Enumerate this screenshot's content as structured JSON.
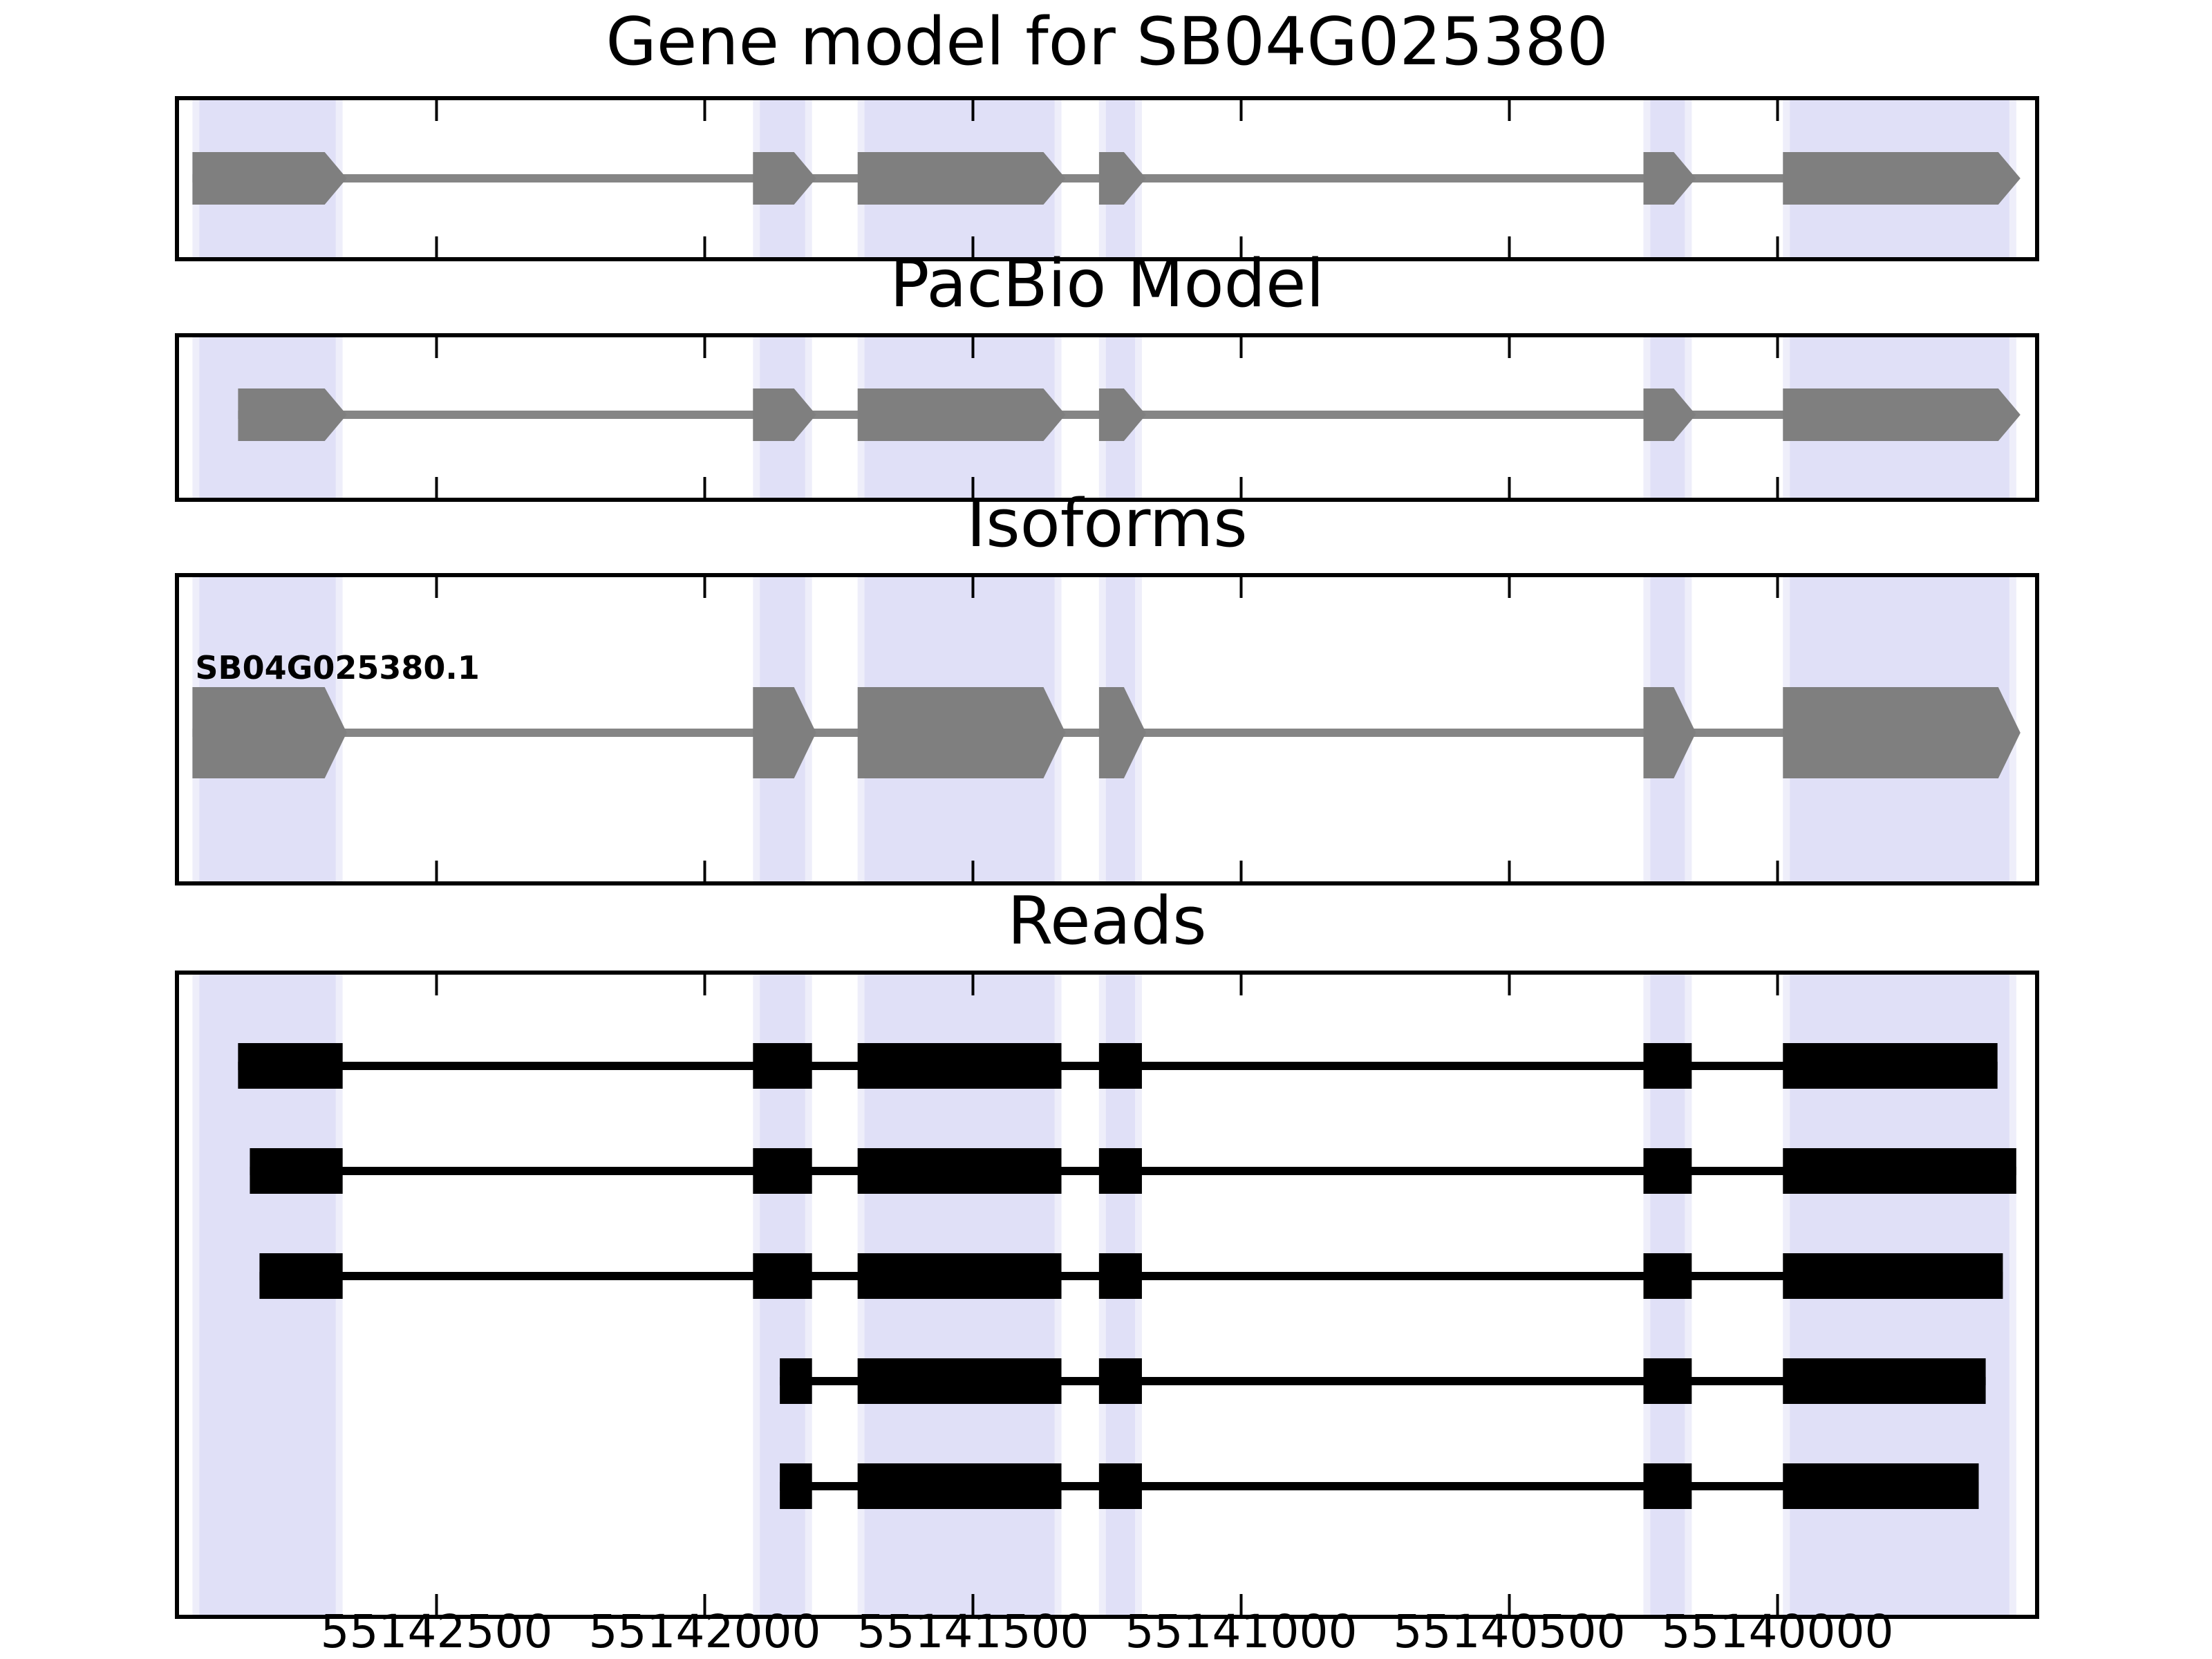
{
  "titles": {
    "main": "Gene model for SB04G025380",
    "pacbio": "PacBio Model",
    "isoforms": "Isoforms",
    "reads": "Reads"
  },
  "isoform_label": "SB04G025380.1",
  "x_tick_labels": [
    "55142500",
    "55142000",
    "55141500",
    "55141000",
    "55140500",
    "55140000"
  ],
  "colors": {
    "exon_gray": "#7F7F7F",
    "intron_gray": "#858585",
    "read_black": "#000000",
    "highlight_band_core": "#E0E0F7",
    "highlight_band_edge": "#EEEEFA",
    "axis_black": "#000000",
    "background": "#FFFFFF"
  },
  "chart_data": {
    "type": "other",
    "subtype": "gene-model-track-plot",
    "title": "Gene model for SB04G025380",
    "track_titles": [
      "Gene model for SB04G025380",
      "PacBio Model",
      "Isoforms",
      "Reads"
    ],
    "x_axis": {
      "unit": "genomic coordinate (bp)",
      "direction": "coordinates decrease left to right (reverse strand view)",
      "range_left_edge": 55142980,
      "range_right_edge": 55139520,
      "ticks": [
        55142500,
        55142000,
        55141500,
        55141000,
        55140500,
        55140000
      ],
      "grid": false
    },
    "highlighted_exon_regions": [
      [
        55142955,
        55142675
      ],
      [
        55141910,
        55141800
      ],
      [
        55141715,
        55141335
      ],
      [
        55141265,
        55141185
      ],
      [
        55140250,
        55140160
      ],
      [
        55139990,
        55139555
      ]
    ],
    "tracks": [
      {
        "name": "Gene model for SB04G025380",
        "style": "gray exons with right-pointing arrow tips joined by intron line",
        "exons": [
          [
            55142955,
            55142675
          ],
          [
            55141910,
            55141800
          ],
          [
            55141715,
            55141335
          ],
          [
            55141265,
            55141185
          ],
          [
            55140250,
            55140160
          ],
          [
            55139990,
            55139555
          ]
        ]
      },
      {
        "name": "PacBio Model",
        "style": "gray exons with right-pointing arrow tips joined by intron line",
        "exons": [
          [
            55142870,
            55142675
          ],
          [
            55141910,
            55141800
          ],
          [
            55141715,
            55141335
          ],
          [
            55141265,
            55141185
          ],
          [
            55140250,
            55140160
          ],
          [
            55139990,
            55139555
          ]
        ]
      },
      {
        "name": "Isoforms",
        "isoforms": [
          {
            "id": "SB04G025380.1",
            "exons": [
              [
                55142955,
                55142675
              ],
              [
                55141910,
                55141800
              ],
              [
                55141715,
                55141335
              ],
              [
                55141265,
                55141185
              ],
              [
                55140250,
                55140160
              ],
              [
                55139990,
                55139555
              ]
            ]
          }
        ]
      },
      {
        "name": "Reads",
        "style": "black rectangular blocks joined by thin black lines",
        "reads": [
          {
            "blocks": [
              [
                55142870,
                55142675
              ],
              [
                55141910,
                55141800
              ],
              [
                55141715,
                55141335
              ],
              [
                55141265,
                55141185
              ],
              [
                55140250,
                55140160
              ],
              [
                55139990,
                55139590
              ]
            ]
          },
          {
            "blocks": [
              [
                55142848,
                55142675
              ],
              [
                55141910,
                55141800
              ],
              [
                55141715,
                55141335
              ],
              [
                55141265,
                55141185
              ],
              [
                55140250,
                55140160
              ],
              [
                55139990,
                55139555
              ]
            ]
          },
          {
            "blocks": [
              [
                55142830,
                55142675
              ],
              [
                55141910,
                55141800
              ],
              [
                55141715,
                55141335
              ],
              [
                55141265,
                55141185
              ],
              [
                55140250,
                55140160
              ],
              [
                55139990,
                55139580
              ]
            ]
          },
          {
            "blocks": [
              [
                55141860,
                55141800
              ],
              [
                55141715,
                55141335
              ],
              [
                55141265,
                55141185
              ],
              [
                55140250,
                55140160
              ],
              [
                55139990,
                55139612
              ]
            ]
          },
          {
            "blocks": [
              [
                55141860,
                55141800
              ],
              [
                55141715,
                55141335
              ],
              [
                55141265,
                55141185
              ],
              [
                55140250,
                55140160
              ],
              [
                55139990,
                55139625
              ]
            ]
          }
        ]
      }
    ]
  }
}
